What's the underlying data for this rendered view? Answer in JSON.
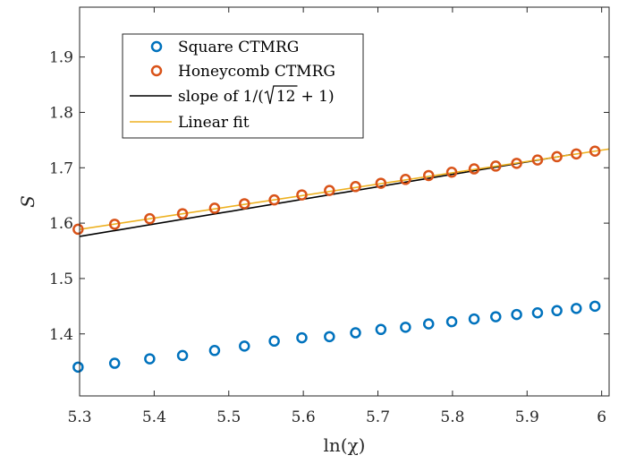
{
  "chart_data": {
    "type": "scatter",
    "xlabel": "ln(χ)",
    "ylabel": "S",
    "xlim": [
      5.3,
      6.01
    ],
    "ylim": [
      1.288,
      1.99
    ],
    "xticks": [
      5.3,
      5.4,
      5.5,
      5.6,
      5.7,
      5.8,
      5.9,
      6
    ],
    "xtick_labels": [
      "5.3",
      "5.4",
      "5.5",
      "5.6",
      "5.7",
      "5.8",
      "5.9",
      "6"
    ],
    "yticks": [
      1.4,
      1.5,
      1.6,
      1.7,
      1.8,
      1.9
    ],
    "ytick_labels": [
      "1.4",
      "1.5",
      "1.6",
      "1.7",
      "1.8",
      "1.9"
    ],
    "legend_position": "top-left",
    "series": [
      {
        "name": "Square CTMRG",
        "kind": "markers",
        "color": "#0072BD",
        "x": [
          5.298,
          5.347,
          5.394,
          5.438,
          5.481,
          5.521,
          5.561,
          5.598,
          5.635,
          5.67,
          5.704,
          5.737,
          5.768,
          5.799,
          5.829,
          5.858,
          5.886,
          5.914,
          5.94,
          5.966,
          5.991
        ],
        "y": [
          1.34,
          1.347,
          1.355,
          1.361,
          1.37,
          1.378,
          1.387,
          1.393,
          1.395,
          1.402,
          1.408,
          1.412,
          1.418,
          1.422,
          1.427,
          1.431,
          1.435,
          1.438,
          1.442,
          1.446,
          1.45
        ]
      },
      {
        "name": "Honeycomb CTMRG",
        "kind": "markers",
        "color": "#D95319",
        "x": [
          5.298,
          5.347,
          5.394,
          5.438,
          5.481,
          5.521,
          5.561,
          5.598,
          5.635,
          5.67,
          5.704,
          5.737,
          5.768,
          5.799,
          5.829,
          5.858,
          5.886,
          5.914,
          5.94,
          5.966,
          5.991
        ],
        "y": [
          1.589,
          1.598,
          1.608,
          1.617,
          1.627,
          1.635,
          1.642,
          1.651,
          1.659,
          1.666,
          1.672,
          1.679,
          1.686,
          1.692,
          1.698,
          1.703,
          1.708,
          1.714,
          1.72,
          1.725,
          1.73
        ]
      },
      {
        "name": "slope of 1/(√12+1)",
        "legend_prefix": "slope of 1/(",
        "legend_radicand": "12",
        "legend_suffix": "+ 1)",
        "kind": "line",
        "color": "#000000",
        "x": [
          5.3,
          5.96
        ],
        "y": [
          1.576,
          1.724
        ]
      },
      {
        "name": "Linear fit",
        "kind": "line",
        "color": "#EDB120",
        "x": [
          5.3,
          6.01
        ],
        "y": [
          1.5888,
          1.7338
        ]
      }
    ]
  }
}
